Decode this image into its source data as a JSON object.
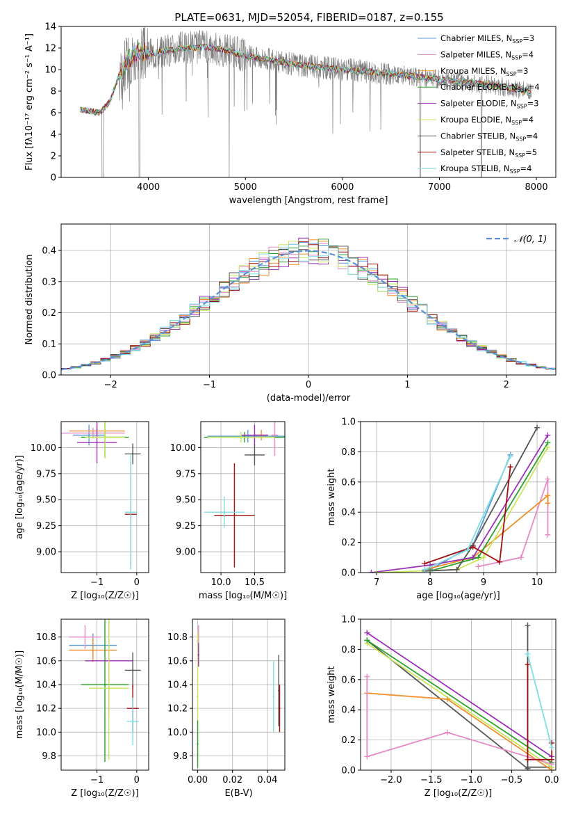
{
  "title": "PLATE=0631, MJD=52054, FIBERID=0187, z=0.155",
  "colors": {
    "chabrier_miles": "#5b9bd5",
    "salpeter_miles": "#e889c7",
    "kroupa_miles": "#f28e2b",
    "chabrier_elodie": "#2ca02c",
    "salpeter_elodie": "#9b30b8",
    "kroupa_elodie": "#c8e65a",
    "chabrier_stelib": "#555555",
    "salpeter_stelib": "#a01010",
    "kroupa_stelib": "#7fdde3",
    "data": "#808080",
    "normal": "#5b8fd6"
  },
  "legend": {
    "models": [
      {
        "label": "Chabrier MILES, N",
        "sub": "SSP",
        "eq": "=3"
      },
      {
        "label": "Salpeter MILES, N",
        "sub": "SSP",
        "eq": "=4"
      },
      {
        "label": "Kroupa MILES, N",
        "sub": "SSP",
        "eq": "=3"
      },
      {
        "label": "Chabrier ELODIE, N",
        "sub": "SSP",
        "eq": "=4"
      },
      {
        "label": "Salpeter ELODIE, N",
        "sub": "SSP",
        "eq": "=3"
      },
      {
        "label": "Kroupa ELODIE, N",
        "sub": "SSP",
        "eq": "=4"
      },
      {
        "label": "Chabrier STELIB, N",
        "sub": "SSP",
        "eq": "=4"
      },
      {
        "label": "Salpeter STELIB, N",
        "sub": "SSP",
        "eq": "=5"
      },
      {
        "label": "Kroupa STELIB, N",
        "sub": "SSP",
        "eq": "=4"
      }
    ],
    "normal": "𝒩(0, 1)"
  },
  "chart_data": [
    {
      "id": "spectrum",
      "type": "line",
      "xlabel": "wavelength [Angstrom, rest frame]",
      "ylabel": "Flux [fλ10⁻¹⁷ erg cm⁻² s⁻¹ A⁻¹]",
      "xlim": [
        3100,
        8200
      ],
      "ylim": [
        0,
        14
      ],
      "xticks": [
        "4000",
        "5000",
        "6000",
        "7000",
        "8000"
      ],
      "yticks": [
        "0",
        "2",
        "4",
        "6",
        "8",
        "10",
        "12",
        "14"
      ],
      "continuum": [
        [
          3300,
          6.3
        ],
        [
          3500,
          6.0
        ],
        [
          3600,
          7.0
        ],
        [
          3700,
          9.5
        ],
        [
          3800,
          11.0
        ],
        [
          3900,
          11.6
        ],
        [
          4000,
          11.4
        ],
        [
          4200,
          11.8
        ],
        [
          4400,
          12.0
        ],
        [
          4600,
          12.1
        ],
        [
          4800,
          11.8
        ],
        [
          5000,
          11.3
        ],
        [
          5200,
          11.0
        ],
        [
          5500,
          10.5
        ],
        [
          5800,
          10.2
        ],
        [
          6000,
          10.0
        ],
        [
          6300,
          9.8
        ],
        [
          6600,
          9.5
        ],
        [
          6900,
          9.2
        ],
        [
          7200,
          8.9
        ],
        [
          7500,
          8.6
        ],
        [
          7800,
          8.2
        ],
        [
          7950,
          7.8
        ]
      ]
    },
    {
      "id": "residuals",
      "type": "area",
      "xlabel": "(data-model)/error",
      "ylabel": "Normed distribution",
      "xlim": [
        -2.5,
        2.5
      ],
      "ylim": [
        0,
        0.485
      ],
      "xticks": [
        "−2",
        "−1",
        "0",
        "1",
        "2"
      ],
      "yticks": [
        "0.0",
        "0.1",
        "0.2",
        "0.3",
        "0.4"
      ],
      "bin_width": 0.1,
      "grid": true,
      "legend_position": "top-right"
    },
    {
      "id": "age_vs_Z",
      "type": "scatter",
      "xlabel": "Z [log₁₀(Z/Z☉)]",
      "ylabel": "age  [log₁₀(age/yr)]",
      "xlim": [
        -1.9,
        0.3
      ],
      "ylim": [
        8.8,
        10.25
      ],
      "xticks": [
        "−1",
        "0"
      ],
      "yticks": [
        "9.00",
        "9.25",
        "9.50",
        "9.75",
        "10.00"
      ],
      "points": [
        {
          "c": "chabrier_miles",
          "x": -1.2,
          "y": 10.12,
          "xe": 0.4,
          "ye": 0.1
        },
        {
          "c": "salpeter_miles",
          "x": -1.1,
          "y": 10.14,
          "xe": 0.8,
          "ye": 0.05
        },
        {
          "c": "kroupa_miles",
          "x": -1.0,
          "y": 10.16,
          "xe": 0.7,
          "ye": 0.05
        },
        {
          "c": "chabrier_elodie",
          "x": -0.8,
          "y": 10.1,
          "xe": 0.6,
          "ye": 0.2
        },
        {
          "c": "salpeter_elodie",
          "x": -1.0,
          "y": 10.05,
          "xe": 0.5,
          "ye": 0.2
        },
        {
          "c": "kroupa_elodie",
          "x": -0.8,
          "y": 10.1,
          "xe": 0.5,
          "ye": 0.2
        },
        {
          "c": "chabrier_stelib",
          "x": -0.1,
          "y": 9.94,
          "xe": 0.2,
          "ye": 0.1
        },
        {
          "c": "salpeter_stelib",
          "x": -0.15,
          "y": 9.36,
          "xe": 0.15,
          "ye": 0.5
        },
        {
          "c": "kroupa_stelib",
          "x": -0.15,
          "y": 9.38,
          "xe": 0.15,
          "ye": 0.55
        }
      ]
    },
    {
      "id": "age_vs_mass",
      "type": "scatter",
      "xlabel": "mass [log₁₀(M/M☉)]",
      "ylabel": "",
      "xlim": [
        9.7,
        10.95
      ],
      "ylim": [
        8.8,
        10.25
      ],
      "xticks": [
        "10.0",
        "10.5"
      ],
      "yticks": [
        "9.00",
        "9.25",
        "9.50",
        "9.75",
        "10.00"
      ],
      "points": [
        {
          "c": "chabrier_miles",
          "x": 10.4,
          "y": 10.11,
          "xe": 0.6,
          "ye": 0.06
        },
        {
          "c": "salpeter_miles",
          "x": 10.8,
          "y": 10.12,
          "xe": 0.05,
          "ye": 0.2
        },
        {
          "c": "kroupa_miles",
          "x": 10.6,
          "y": 10.12,
          "xe": 0.1,
          "ye": 0.05
        },
        {
          "c": "chabrier_elodie",
          "x": 10.35,
          "y": 10.1,
          "xe": 0.6,
          "ye": 0.05
        },
        {
          "c": "salpeter_elodie",
          "x": 10.5,
          "y": 10.12,
          "xe": 0.2,
          "ye": 0.1
        },
        {
          "c": "kroupa_elodie",
          "x": 10.3,
          "y": 10.1,
          "xe": 0.5,
          "ye": 0.05
        },
        {
          "c": "chabrier_stelib",
          "x": 10.5,
          "y": 9.93,
          "xe": 0.15,
          "ye": 0.1
        },
        {
          "c": "salpeter_stelib",
          "x": 10.2,
          "y": 9.35,
          "xe": 0.3,
          "ye": 0.5
        },
        {
          "c": "kroupa_stelib",
          "x": 10.05,
          "y": 9.38,
          "xe": 0.3,
          "ye": 0.15
        }
      ]
    },
    {
      "id": "weight_vs_age",
      "type": "line",
      "xlabel": "age  [log₁₀(age/yr)]",
      "ylabel": "mass weight",
      "xlim": [
        6.7,
        10.35
      ],
      "ylim": [
        0,
        1
      ],
      "xticks": [
        "7",
        "8",
        "9",
        "10"
      ],
      "yticks": [
        "0.0",
        "0.2",
        "0.4",
        "0.6",
        "0.8",
        "1.0"
      ],
      "series": [
        {
          "c": "chabrier_miles",
          "pts": [
            [
              8.0,
              0.02
            ],
            [
              8.8,
              0.18
            ],
            [
              9.5,
              0.78
            ]
          ]
        },
        {
          "c": "salpeter_miles",
          "pts": [
            [
              8.9,
              0.04
            ],
            [
              9.7,
              0.1
            ],
            [
              10.2,
              0.62
            ],
            [
              10.2,
              0.25
            ]
          ]
        },
        {
          "c": "kroupa_miles",
          "pts": [
            [
              7.9,
              0.02
            ],
            [
              8.8,
              0.1
            ],
            [
              10.2,
              0.51
            ],
            [
              10.2,
              0.46
            ]
          ]
        },
        {
          "c": "chabrier_elodie",
          "pts": [
            [
              8.0,
              0.01
            ],
            [
              8.9,
              0.1
            ],
            [
              10.2,
              0.86
            ]
          ]
        },
        {
          "c": "salpeter_elodie",
          "pts": [
            [
              6.9,
              0.0
            ],
            [
              8.0,
              0.05
            ],
            [
              8.8,
              0.1
            ],
            [
              10.2,
              0.91
            ]
          ]
        },
        {
          "c": "kroupa_elodie",
          "pts": [
            [
              7.0,
              0.0
            ],
            [
              8.5,
              0.02
            ],
            [
              9.0,
              0.1
            ],
            [
              10.2,
              0.83
            ]
          ]
        },
        {
          "c": "chabrier_stelib",
          "pts": [
            [
              7.9,
              0.01
            ],
            [
              8.5,
              0.02
            ],
            [
              8.8,
              0.18
            ],
            [
              10.0,
              0.96
            ]
          ]
        },
        {
          "c": "salpeter_stelib",
          "pts": [
            [
              7.9,
              0.06
            ],
            [
              8.8,
              0.17
            ],
            [
              9.3,
              0.07
            ],
            [
              9.5,
              0.7
            ]
          ]
        },
        {
          "c": "kroupa_stelib",
          "pts": [
            [
              7.9,
              0.02
            ],
            [
              8.7,
              0.15
            ],
            [
              9.5,
              0.77
            ]
          ]
        }
      ]
    },
    {
      "id": "mass_vs_Z",
      "type": "scatter",
      "xlabel": "Z [log₁₀(Z/Z☉)]",
      "ylabel": "mass [log₁₀(M/M☉)]",
      "xlim": [
        -1.9,
        0.3
      ],
      "ylim": [
        9.68,
        10.95
      ],
      "xticks": [
        "−1",
        "0"
      ],
      "yticks": [
        "9.8",
        "10.0",
        "10.2",
        "10.4",
        "10.6",
        "10.8"
      ],
      "points": [
        {
          "c": "chabrier_miles",
          "x": -1.1,
          "y": 10.73,
          "xe": 0.6,
          "ye": 0.1
        },
        {
          "c": "salpeter_miles",
          "x": -1.3,
          "y": 10.8,
          "xe": 0.4,
          "ye": 0.1
        },
        {
          "c": "kroupa_miles",
          "x": -1.1,
          "y": 10.69,
          "xe": 0.6,
          "ye": 0.1
        },
        {
          "c": "chabrier_elodie",
          "x": -0.8,
          "y": 10.4,
          "xe": 0.6,
          "ye": 0.65
        },
        {
          "c": "salpeter_elodie",
          "x": -0.7,
          "y": 10.6,
          "xe": 0.6,
          "ye": 0.45
        },
        {
          "c": "kroupa_elodie",
          "x": -0.7,
          "y": 10.37,
          "xe": 0.5,
          "ye": 0.6
        },
        {
          "c": "chabrier_stelib",
          "x": -0.1,
          "y": 10.52,
          "xe": 0.2,
          "ye": 0.15
        },
        {
          "c": "salpeter_stelib",
          "x": -0.1,
          "y": 10.2,
          "xe": 0.15,
          "ye": 0.2
        },
        {
          "c": "kroupa_stelib",
          "x": -0.1,
          "y": 10.09,
          "xe": 0.15,
          "ye": 0.2
        }
      ]
    },
    {
      "id": "mass_vs_ebv",
      "type": "scatter",
      "xlabel": "E(B-V)",
      "ylabel": "",
      "xlim": [
        -0.003,
        0.05
      ],
      "ylim": [
        9.68,
        10.95
      ],
      "xticks": [
        "0.00",
        "0.02",
        "0.04"
      ],
      "yticks": [
        "9.8",
        "10.0",
        "10.2",
        "10.4",
        "10.6",
        "10.8"
      ],
      "points": [
        {
          "c": "salpeter_miles",
          "x": 0.0005,
          "y": 10.8,
          "xe": 0.0,
          "ye": 0.1
        },
        {
          "c": "kroupa_elodie",
          "x": 0.0,
          "y": 10.3,
          "xe": 0.0,
          "ye": 0.55
        },
        {
          "c": "chabrier_elodie",
          "x": 0.0,
          "y": 9.9,
          "xe": 0.0,
          "ye": 0.2
        },
        {
          "c": "salpeter_elodie",
          "x": 0.0005,
          "y": 10.65,
          "xe": 0.0,
          "ye": 0.1
        },
        {
          "c": "kroupa_stelib",
          "x": 0.0435,
          "y": 10.3,
          "xe": 0.0,
          "ye": 0.3
        },
        {
          "c": "chabrier_stelib",
          "x": 0.0465,
          "y": 10.35,
          "xe": 0.0,
          "ye": 0.3
        },
        {
          "c": "salpeter_stelib",
          "x": 0.047,
          "y": 10.2,
          "xe": 0.0,
          "ye": 0.2
        }
      ]
    },
    {
      "id": "weight_vs_Z",
      "type": "line",
      "xlabel": "Z [log₁₀(Z/Z☉)]",
      "ylabel": "mass weight",
      "xlim": [
        -2.38,
        0.05
      ],
      "ylim": [
        0,
        1
      ],
      "xticks": [
        "−2.0",
        "−1.5",
        "−1.0",
        "−0.5",
        "0.0"
      ],
      "yticks": [
        "0.0",
        "0.2",
        "0.4",
        "0.6",
        "0.8",
        "1.0"
      ],
      "series": [
        {
          "c": "salpeter_elodie",
          "pts": [
            [
              -2.3,
              0.91
            ],
            [
              0.0,
              0.09
            ]
          ]
        },
        {
          "c": "chabrier_stelib",
          "pts": [
            [
              -2.3,
              0.86
            ],
            [
              -0.3,
              0.01
            ],
            [
              -0.3,
              0.96
            ],
            [
              -0.3,
              0.02
            ],
            [
              0.0,
              0.02
            ]
          ]
        },
        {
          "c": "kroupa_elodie",
          "pts": [
            [
              -2.3,
              0.84
            ],
            [
              0.0,
              0.02
            ]
          ]
        },
        {
          "c": "chabrier_elodie",
          "pts": [
            [
              -2.3,
              0.86
            ],
            [
              0.0,
              0.05
            ]
          ]
        },
        {
          "c": "kroupa_miles",
          "pts": [
            [
              -2.3,
              0.51
            ],
            [
              -1.3,
              0.47
            ],
            [
              0.0,
              0.0
            ]
          ]
        },
        {
          "c": "salpeter_miles",
          "pts": [
            [
              -2.3,
              0.62
            ],
            [
              -2.3,
              0.09
            ],
            [
              -1.3,
              0.25
            ],
            [
              0.0,
              0.04
            ]
          ]
        },
        {
          "c": "salpeter_stelib",
          "pts": [
            [
              -0.3,
              0.7
            ],
            [
              -0.3,
              0.07
            ],
            [
              0.0,
              0.07
            ],
            [
              0.0,
              0.18
            ]
          ]
        },
        {
          "c": "kroupa_stelib",
          "pts": [
            [
              -0.3,
              0.77
            ],
            [
              0.0,
              0.15
            ]
          ]
        }
      ]
    }
  ]
}
